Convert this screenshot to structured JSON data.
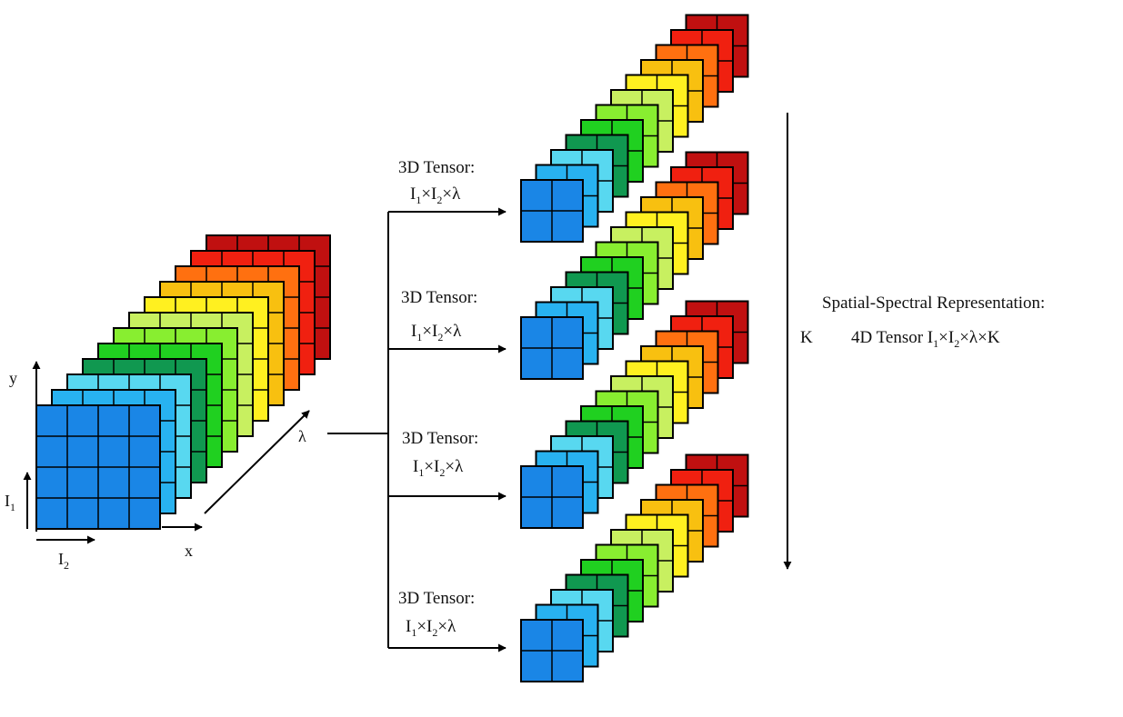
{
  "axes": {
    "y_label": "y",
    "x_label": "x",
    "lambda_label": "λ",
    "i1_label": "I1",
    "i2_label": "I2"
  },
  "tensors": [
    {
      "title": "3D Tensor:",
      "dims": "I1×I2×λ"
    },
    {
      "title": "3D Tensor:",
      "dims": "I1×I2×λ"
    },
    {
      "title": "3D Tensor:",
      "dims": "I1×I2×λ"
    },
    {
      "title": "3D Tensor:",
      "dims": "I1×I2×λ"
    }
  ],
  "k_label": "K",
  "representation": {
    "title": "Spatial-Spectral Representation:",
    "subtitle": "4D Tensor  I1×I2×λ×K"
  },
  "band_colors": [
    "#1a86e6",
    "#28b2f0",
    "#58d8f0",
    "#109850",
    "#20d020",
    "#88ee30",
    "#c8f060",
    "#fff020",
    "#f8c010",
    "#ff7010",
    "#f02010",
    "#c01010"
  ]
}
